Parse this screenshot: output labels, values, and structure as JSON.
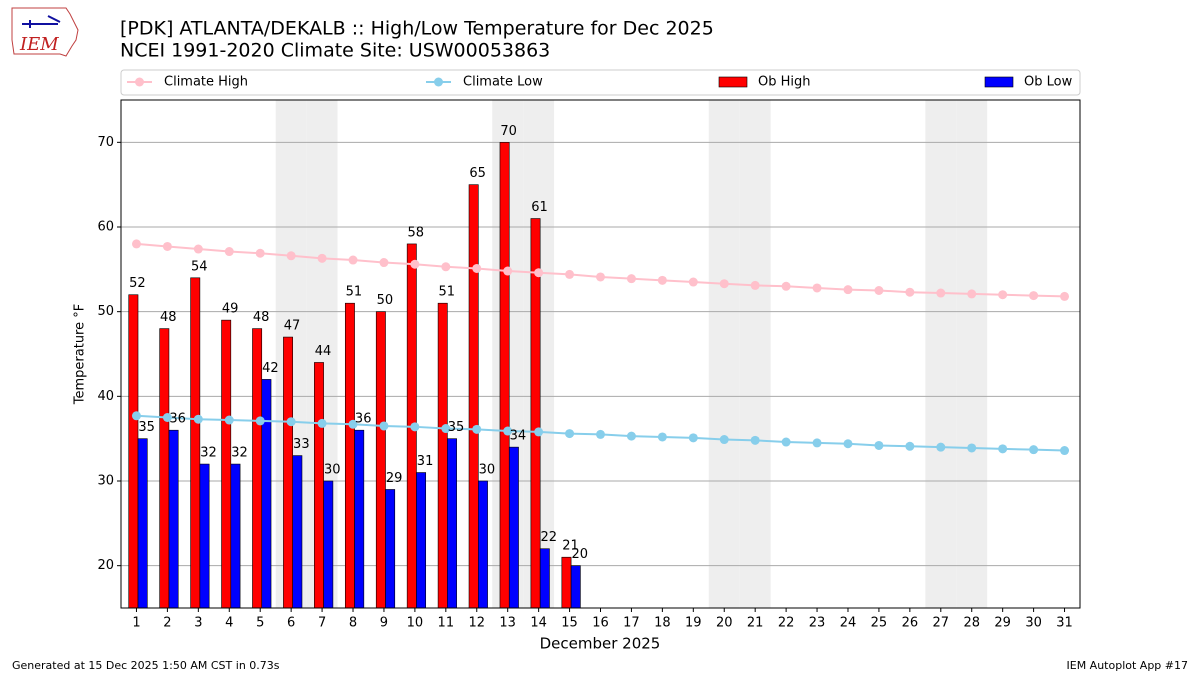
{
  "chart_data": {
    "type": "bar",
    "title": "[PDK] ATLANTA/DEKALB :: High/Low Temperature for Dec 2025",
    "subtitle": "NCEI 1991-2020 Climate Site: USW00053863",
    "logo_text": "IEM",
    "x_label": "December 2025",
    "y_label": "Temperature °F",
    "footer_left": "Generated at 15 Dec 2025 1:50 AM CST in 0.73s",
    "footer_right": "IEM Autoplot App #17",
    "x": [
      1,
      2,
      3,
      4,
      5,
      6,
      7,
      8,
      9,
      10,
      11,
      12,
      13,
      14,
      15,
      16,
      17,
      18,
      19,
      20,
      21,
      22,
      23,
      24,
      25,
      26,
      27,
      28,
      29,
      30,
      31
    ],
    "xlim": [
      0.5,
      31.5
    ],
    "xticks": [
      1,
      2,
      3,
      4,
      5,
      6,
      7,
      8,
      9,
      10,
      11,
      12,
      13,
      14,
      15,
      16,
      17,
      18,
      19,
      20,
      21,
      22,
      23,
      24,
      25,
      26,
      27,
      28,
      29,
      30,
      31
    ],
    "ylim": [
      15,
      75
    ],
    "yticks": [
      20,
      30,
      40,
      50,
      60,
      70
    ],
    "grid": true,
    "weekend_days": [
      6,
      7,
      13,
      14,
      20,
      21,
      27,
      28
    ],
    "weekend_color": "#eeeeee",
    "legend": "top",
    "series": [
      {
        "name": "Climate High",
        "type": "line",
        "color": "#ffc0cb",
        "values": [
          58.0,
          57.7,
          57.4,
          57.1,
          56.9,
          56.6,
          56.3,
          56.1,
          55.8,
          55.6,
          55.3,
          55.1,
          54.8,
          54.6,
          54.4,
          54.1,
          53.9,
          53.7,
          53.5,
          53.3,
          53.1,
          53.0,
          52.8,
          52.6,
          52.5,
          52.3,
          52.2,
          52.1,
          52.0,
          51.9,
          51.8
        ]
      },
      {
        "name": "Climate Low",
        "type": "line",
        "color": "#87ceeb",
        "values": [
          37.7,
          37.5,
          37.3,
          37.2,
          37.1,
          37.0,
          36.8,
          36.7,
          36.5,
          36.4,
          36.2,
          36.1,
          35.9,
          35.8,
          35.6,
          35.5,
          35.3,
          35.2,
          35.1,
          34.9,
          34.8,
          34.6,
          34.5,
          34.4,
          34.2,
          34.1,
          34.0,
          33.9,
          33.8,
          33.7,
          33.6
        ]
      },
      {
        "name": "Ob High",
        "type": "bar",
        "color": "#ff0000",
        "values": [
          52,
          48,
          54,
          49,
          48,
          47,
          44,
          51,
          50,
          58,
          51,
          65,
          70,
          61,
          21,
          null,
          null,
          null,
          null,
          null,
          null,
          null,
          null,
          null,
          null,
          null,
          null,
          null,
          null,
          null,
          null
        ]
      },
      {
        "name": "Ob Low",
        "type": "bar",
        "color": "#0000ff",
        "values": [
          35,
          36,
          32,
          32,
          42,
          33,
          30,
          36,
          29,
          31,
          35,
          30,
          34,
          22,
          20,
          null,
          null,
          null,
          null,
          null,
          null,
          null,
          null,
          null,
          null,
          null,
          null,
          null,
          null,
          null,
          null
        ]
      }
    ]
  }
}
